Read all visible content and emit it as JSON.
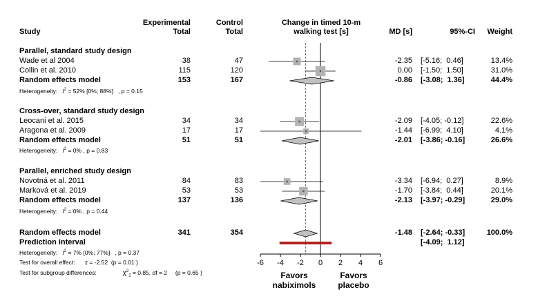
{
  "headers": {
    "study": "Study",
    "experimental": [
      "Experimental",
      "Total"
    ],
    "control": [
      "Control",
      "Total"
    ],
    "plot": [
      "Change in timed 10-m",
      "walking test [s]"
    ],
    "md": "MD [s]",
    "ci": "95%-CI",
    "weight": "Weight"
  },
  "chart_data": {
    "type": "forest",
    "xlim": [
      -6,
      6
    ],
    "xticks": [
      -6,
      -4,
      -2,
      0,
      2,
      4,
      6
    ],
    "xtick_labels": [
      "-6",
      "-4",
      "-2",
      "0",
      "2",
      "4",
      "6"
    ],
    "reference_line": 0,
    "overall_line": -1.48,
    "favors_left": [
      "Favors",
      "nabiximols"
    ],
    "favors_right": [
      "Favors",
      "placebo"
    ],
    "groups": [
      {
        "title": "Parallel, standard study design",
        "studies": [
          {
            "name": "Wade et al 2004",
            "exp": "38",
            "ctrl": "47",
            "md": -2.35,
            "lo": -5.16,
            "hi": 0.46,
            "md_text": "-2.35",
            "ci_text": "[-5.16;  0.46]",
            "weight": "13.4%",
            "w": 13.4
          },
          {
            "name": "Collin et al. 2010",
            "exp": "115",
            "ctrl": "120",
            "md": 0.0,
            "lo": -1.5,
            "hi": 1.5,
            "md_text": "0.00",
            "ci_text": "[-1.50;  1.50]",
            "weight": "31.0%",
            "w": 31.0
          }
        ],
        "pooled": {
          "label": "Random effects model",
          "exp": "153",
          "ctrl": "167",
          "md": -0.86,
          "lo": -3.08,
          "hi": 1.36,
          "md_text": "-0.86",
          "ci_text": "[-3.08;  1.36]",
          "weight": "44.4%"
        },
        "heterogeneity": {
          "prefix": "Heterogeneity:",
          "i2": "= 52% [0%; 88%]",
          "p": ", p = 0.15"
        }
      },
      {
        "title": "Cross-over, standard study design",
        "studies": [
          {
            "name": "Leocani et al. 2015",
            "exp": "34",
            "ctrl": "34",
            "md": -2.09,
            "lo": -4.05,
            "hi": -0.12,
            "md_text": "-2.09",
            "ci_text": "[-4.05; -0.12]",
            "weight": "22.6%",
            "w": 22.6
          },
          {
            "name": "Aragona et al. 2009",
            "exp": "17",
            "ctrl": "17",
            "md": -1.44,
            "lo": -6.99,
            "hi": 4.1,
            "md_text": "-1.44",
            "ci_text": "[-6.99;  4.10]",
            "weight": "4.1%",
            "w": 4.1
          }
        ],
        "pooled": {
          "label": "Random effects model",
          "exp": "51",
          "ctrl": "51",
          "md": -2.01,
          "lo": -3.86,
          "hi": -0.16,
          "md_text": "-2.01",
          "ci_text": "[-3.86; -0.16]",
          "weight": "26.6%"
        },
        "heterogeneity": {
          "prefix": "Heterogeneity:",
          "i2": "= 0%",
          "p": ", p = 0.83"
        }
      },
      {
        "title": "Parallel, enriched study design",
        "studies": [
          {
            "name": "Novotná et al. 2011",
            "exp": "84",
            "ctrl": "83",
            "md": -3.34,
            "lo": -6.94,
            "hi": 0.27,
            "md_text": "-3.34",
            "ci_text": "[-6.94;  0.27]",
            "weight": "8.9%",
            "w": 8.9
          },
          {
            "name": "Marková et al. 2019",
            "exp": "53",
            "ctrl": "53",
            "md": -1.7,
            "lo": -3.84,
            "hi": 0.44,
            "md_text": "-1.70",
            "ci_text": "[-3.84;  0.44]",
            "weight": "20.1%",
            "w": 20.1
          }
        ],
        "pooled": {
          "label": "Random effects model",
          "exp": "137",
          "ctrl": "136",
          "md": -2.13,
          "lo": -3.97,
          "hi": -0.29,
          "md_text": "-2.13",
          "ci_text": "[-3.97; -0.29]",
          "weight": "29.0%"
        },
        "heterogeneity": {
          "prefix": "Heterogeneity:",
          "i2": "= 0%",
          "p": ", p = 0.44"
        }
      }
    ],
    "overall": {
      "label": "Random effects model",
      "exp": "341",
      "ctrl": "354",
      "md": -1.48,
      "lo": -2.64,
      "hi": -0.33,
      "md_text": "-1.48",
      "ci_text": "[-2.64; -0.33]",
      "weight": "100.0%"
    },
    "prediction": {
      "label": "Prediction interval",
      "lo": -4.09,
      "hi": 1.12,
      "ci_text": "[-4.09;  1.12]",
      "color": "#b22222"
    },
    "footer": {
      "heterogeneity": {
        "prefix": "Heterogeneity:",
        "i2": "= 7% [0%; 77%]",
        "p": ", p = 0.37"
      },
      "overall_effect": {
        "prefix": "Test for overall effect:",
        "stat": "z = -2.52",
        "p": "(p = 0.01 )"
      },
      "subgroup": {
        "prefix": "Test for subgroup differences:",
        "stat": "= 0.85, df = 2",
        "p": "(p = 0.65 )"
      }
    },
    "colors": {
      "square": "#b3b3b3",
      "diamond": "#c0c0c0",
      "line": "#000000",
      "overall_dash": "#555555"
    }
  }
}
